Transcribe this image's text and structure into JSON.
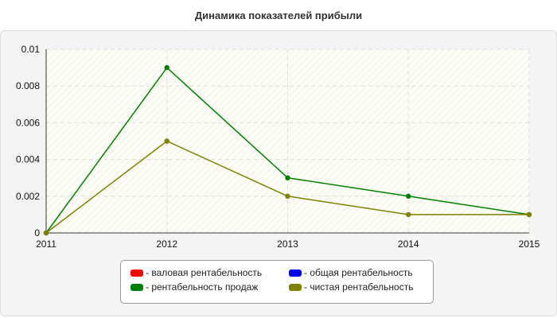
{
  "chart_data": {
    "type": "line",
    "title": "Динамика показателей прибыли",
    "x": [
      "2011",
      "2012",
      "2013",
      "2014",
      "2015"
    ],
    "ylim": [
      0,
      0.01
    ],
    "yticks": [
      "0",
      "0.002",
      "0.004",
      "0.006",
      "0.008",
      "0.01"
    ],
    "grid": true,
    "legend_placement": "bottom-center",
    "series": [
      {
        "name": "- валовая рентабельность",
        "color": "#ff0000",
        "values": [
          null,
          null,
          null,
          null,
          null
        ]
      },
      {
        "name": "- общая рентабельность",
        "color": "#0000ff",
        "values": [
          null,
          null,
          null,
          null,
          null
        ]
      },
      {
        "name": "- рентабельность продаж",
        "color": "#008000",
        "values": [
          0,
          0.009,
          0.003,
          0.002,
          0.001
        ]
      },
      {
        "name": "- чистая рентабельность",
        "color": "#808000",
        "values": [
          0,
          0.005,
          0.002,
          0.001,
          0.001
        ]
      }
    ]
  }
}
